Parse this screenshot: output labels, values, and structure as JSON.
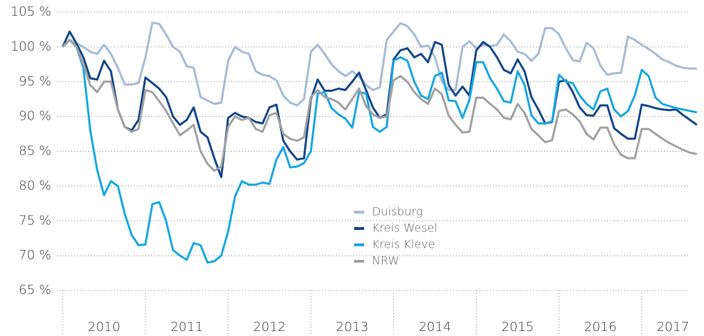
{
  "chart_data": {
    "type": "line",
    "categories": [
      "2010",
      null,
      null,
      null,
      null,
      null,
      null,
      null,
      null,
      null,
      null,
      null,
      "2011",
      null,
      null,
      null,
      null,
      null,
      null,
      null,
      null,
      null,
      null,
      null,
      "2012",
      null,
      null,
      null,
      null,
      null,
      null,
      null,
      null,
      null,
      null,
      null,
      "2013",
      null,
      null,
      null,
      null,
      null,
      null,
      null,
      null,
      null,
      null,
      null,
      "2014",
      null,
      null,
      null,
      null,
      null,
      null,
      null,
      null,
      null,
      null,
      null,
      "2015",
      null,
      null,
      null,
      null,
      null,
      null,
      null,
      null,
      null,
      null,
      null,
      "2016",
      null,
      null,
      null,
      null,
      null,
      null,
      null,
      null,
      null,
      null,
      null,
      "2017",
      null,
      null,
      null,
      null,
      null,
      null,
      null,
      null
    ],
    "ylim": [
      65,
      105
    ],
    "yticks": [
      {
        "value": 65,
        "label": "65 %"
      },
      {
        "value": 70,
        "label": "70 %"
      },
      {
        "value": 75,
        "label": "75 %"
      },
      {
        "value": 80,
        "label": "80 %"
      },
      {
        "value": 85,
        "label": "85 %"
      },
      {
        "value": 90,
        "label": "90 %"
      },
      {
        "value": 95,
        "label": "95 %"
      },
      {
        "value": 100,
        "label": "100 %"
      },
      {
        "value": 105,
        "label": "105 %"
      }
    ],
    "grid": true,
    "series": [
      {
        "name": "Duisburg",
        "color": "#a6bcd8",
        "values": [
          100,
          101,
          100.5,
          100,
          99.3,
          99,
          100.3,
          99,
          97,
          94.6,
          94.6,
          94.8,
          98.5,
          103.5,
          103.3,
          101.8,
          100,
          99.3,
          97.2,
          97,
          92.8,
          92.3,
          91.8,
          92,
          98,
          100,
          99.3,
          99,
          96.5,
          96,
          95.8,
          95.2,
          93,
          92,
          91.6,
          92.5,
          99.3,
          100.3,
          99,
          97.5,
          96.5,
          95.8,
          96.5,
          95.7,
          94.5,
          93.8,
          94.2,
          101,
          102.2,
          103.4,
          103,
          101.8,
          100,
          100.2,
          98.5,
          95,
          93.8,
          93.8,
          100,
          100.8,
          99.8,
          100.3,
          100.1,
          100.3,
          101.8,
          100.8,
          99.3,
          99,
          98,
          99,
          102.7,
          102.7,
          101.8,
          99.8,
          98.1,
          97.9,
          100.6,
          99.8,
          97.3,
          96,
          96.2,
          96.3,
          101.5,
          101,
          100.3,
          99.7,
          99,
          98.2,
          97.8,
          97.3,
          97,
          96.9,
          96.9
        ]
      },
      {
        "name": "Kreis Wesel",
        "color": "#17498a",
        "values": [
          100,
          102.2,
          100.5,
          98.5,
          95.5,
          95.3,
          98,
          96.5,
          91,
          88.5,
          88,
          89.5,
          95.6,
          94.8,
          94,
          92.8,
          90,
          88.8,
          89.5,
          91.3,
          87.8,
          87,
          84,
          81.3,
          89.8,
          90.5,
          90,
          89.8,
          89.2,
          89,
          91.3,
          91.7,
          86.5,
          85,
          83.8,
          84,
          92.5,
          95.3,
          93.7,
          93.7,
          94,
          93.8,
          95,
          96.3,
          93.8,
          91.3,
          89.8,
          90.3,
          98.2,
          99.5,
          99.8,
          98.5,
          99,
          97.8,
          100.7,
          100.3,
          94.5,
          93,
          94.3,
          93,
          99.5,
          100.7,
          100,
          98.5,
          96.7,
          96.2,
          98.2,
          96.5,
          92.8,
          91,
          89,
          89.2,
          95,
          95.2,
          93.5,
          91.3,
          90.2,
          90.1,
          91.6,
          91.6,
          88.3,
          87.5,
          86.8,
          86.8,
          91.7,
          91.5,
          91.2,
          91,
          90.9,
          91,
          90.2,
          89.5,
          88.8
        ]
      },
      {
        "name": "Kreis Kleve",
        "color": "#1ba8e2",
        "values": [
          100,
          101,
          100,
          97,
          88,
          82.3,
          78.7,
          80.7,
          80,
          76,
          73,
          71.5,
          71.6,
          77.4,
          77.7,
          75,
          70.8,
          70,
          69.4,
          71.8,
          71.5,
          69,
          69.2,
          70,
          73.5,
          78.5,
          80.7,
          80.2,
          80.2,
          80.5,
          80.3,
          83.8,
          85.6,
          82.7,
          82.8,
          83.3,
          85,
          93.3,
          93.5,
          91.2,
          90.3,
          89.7,
          88.4,
          93.5,
          93.3,
          88.5,
          87.8,
          88.5,
          98,
          98.5,
          98,
          95,
          93,
          92.5,
          95.8,
          96.3,
          92.3,
          92.2,
          89.8,
          92.4,
          97.8,
          97.8,
          95.5,
          94,
          92.2,
          92,
          96.5,
          94.5,
          90.2,
          89,
          89,
          89.3,
          96,
          95,
          94.8,
          93,
          91.8,
          91,
          93.6,
          94,
          91,
          90,
          90.8,
          93,
          96.7,
          95.8,
          92.7,
          91.8,
          91.5,
          91.2,
          91,
          90.8,
          90.6
        ]
      },
      {
        "name": "NRW",
        "color": "#a2a2a2",
        "values": [
          100,
          101,
          100,
          97.5,
          94.5,
          93.5,
          95,
          95,
          91,
          88.5,
          87.8,
          88.2,
          93.8,
          93.5,
          92.2,
          90.8,
          89,
          87.3,
          88,
          88.8,
          85,
          83.2,
          82.2,
          82.8,
          88.5,
          90,
          89.5,
          89.8,
          88.2,
          87.8,
          90.2,
          90.5,
          87.5,
          86.8,
          86.5,
          87,
          92.8,
          93.8,
          92.8,
          92.5,
          92,
          91,
          92.5,
          94,
          91.5,
          90.3,
          89.8,
          90,
          95.2,
          95.8,
          95,
          93.5,
          92.5,
          91.8,
          94,
          93.2,
          90.1,
          88.8,
          87.7,
          87.8,
          92.7,
          92.7,
          91.8,
          91,
          89.8,
          89.6,
          91.8,
          90.5,
          88.2,
          87.3,
          86.3,
          86.6,
          90.8,
          91,
          90.3,
          89.3,
          87.5,
          86.7,
          88.4,
          88.4,
          86,
          84.5,
          84,
          84,
          88.2,
          88.2,
          87.5,
          86.8,
          86.2,
          85.7,
          85.2,
          84.8,
          84.6
        ]
      }
    ]
  }
}
